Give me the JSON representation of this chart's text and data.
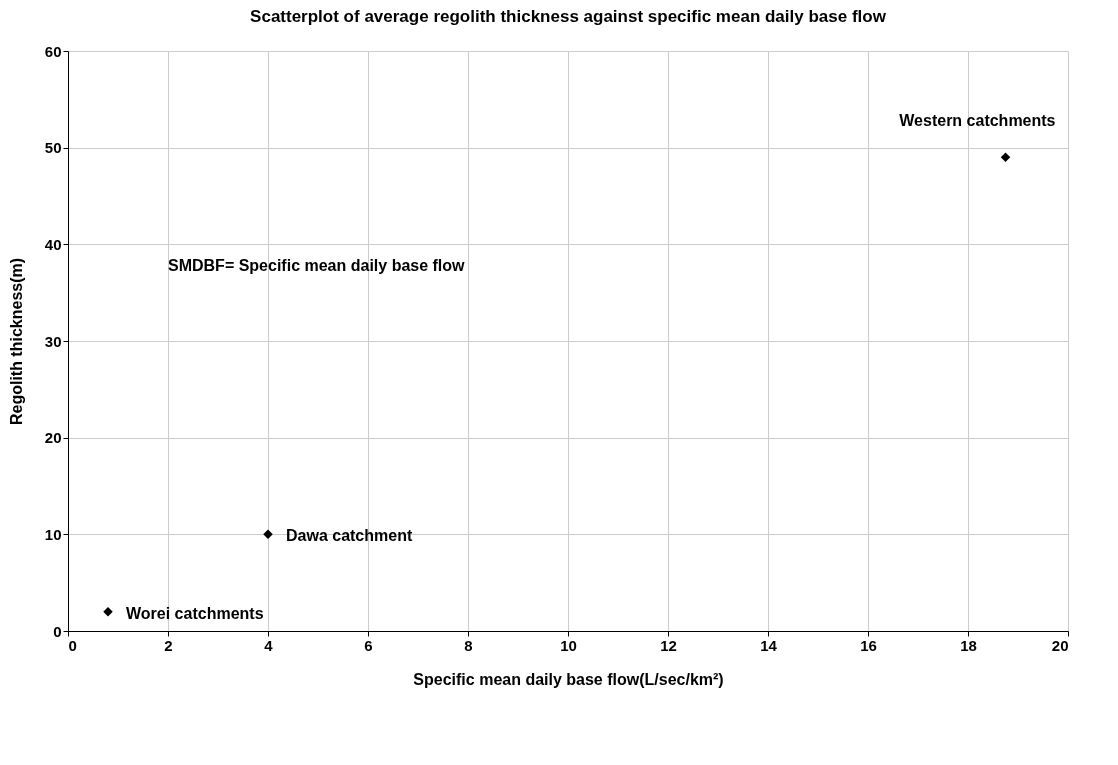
{
  "chart_data": {
    "type": "scatter",
    "title": "Scatterplot of average regolith thickness against specific mean daily base flow",
    "xlabel": "Specific mean daily base flow(L/sec/km²)",
    "ylabel": "Regolith thickness(m)",
    "x": [
      0.8,
      4,
      18.75
    ],
    "series": [
      {
        "color": "#000000",
        "values": [
          2,
          10,
          49
        ]
      }
    ],
    "xlim": [
      0,
      20
    ],
    "xticks": [
      0,
      2,
      4,
      6,
      8,
      10,
      12,
      14,
      16,
      18,
      20
    ],
    "ylim": [
      0,
      60
    ],
    "yticks": [
      0,
      10,
      20,
      30,
      40,
      50,
      60
    ],
    "grid": true,
    "marker": "diamond",
    "annotations": [
      {
        "text": "Worei catchments",
        "x": 0.8,
        "y": 2
      },
      {
        "text": "Dawa catchment",
        "x": 4,
        "y": 10
      },
      {
        "text": "Western catchments",
        "x": 18.75,
        "y": 49
      },
      "SMDBF= Specific mean daily base flow"
    ]
  }
}
